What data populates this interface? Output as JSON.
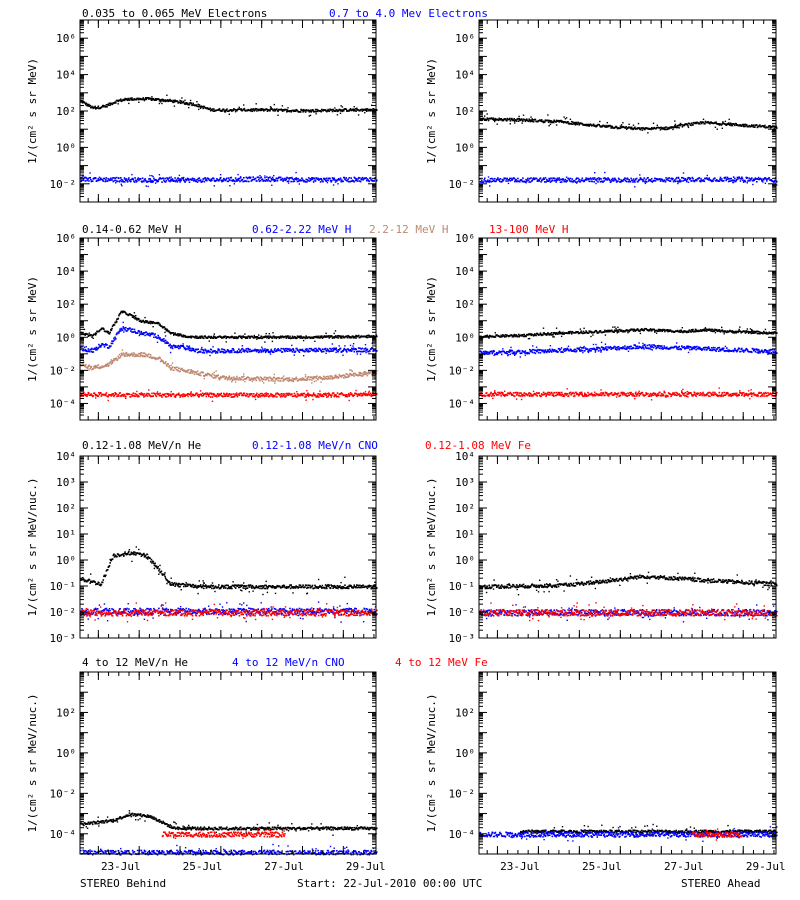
{
  "footer": {
    "left": "STEREO Behind",
    "center": "Start: 22-Jul-2010 00:00 UTC",
    "right": "STEREO Ahead"
  },
  "chart_data": [
    {
      "type": "scatter",
      "spacecraft": "STEREO Behind",
      "ylabel": "1/(cm² s sr MeV)",
      "yscale": "log",
      "ylim_exp": [
        -3,
        7
      ],
      "ytick_exp": [
        -2,
        0,
        2,
        4,
        6
      ],
      "xlim_days": [
        0,
        7.25
      ],
      "x_ticks": [
        "23-Jul",
        "25-Jul",
        "27-Jul",
        "29-Jul"
      ],
      "series": [
        {
          "name": "0.035 to 0.065 MeV Electrons",
          "color": "#000000",
          "points": [
            [
              0,
              2.6
            ],
            [
              0.3,
              2.2
            ],
            [
              0.6,
              2.3
            ],
            [
              0.9,
              2.6
            ],
            [
              1.2,
              2.7
            ],
            [
              1.7,
              2.7
            ],
            [
              2.2,
              2.6
            ],
            [
              2.8,
              2.4
            ],
            [
              3.2,
              2.1
            ],
            [
              4.5,
              2.1
            ],
            [
              5.5,
              2.05
            ],
            [
              6.5,
              2.1
            ],
            [
              7.25,
              2.1
            ]
          ]
        },
        {
          "name": "0.7 to 4.0 Mev Electrons",
          "color": "#0000ff",
          "points": [
            [
              0,
              -1.7
            ],
            [
              1.5,
              -1.75
            ],
            [
              3,
              -1.75
            ],
            [
              4.5,
              -1.7
            ],
            [
              6,
              -1.75
            ],
            [
              7.25,
              -1.7
            ]
          ]
        }
      ]
    },
    {
      "type": "scatter",
      "spacecraft": "STEREO Ahead",
      "ylabel": "1/(cm² s sr MeV)",
      "yscale": "log",
      "ylim_exp": [
        -3,
        7
      ],
      "ytick_exp": [
        -2,
        0,
        2,
        4,
        6
      ],
      "xlim_days": [
        0,
        7.25
      ],
      "x_ticks": [
        "23-Jul",
        "25-Jul",
        "27-Jul",
        "29-Jul"
      ],
      "series": [
        {
          "name": "0.035 to 0.065 MeV Electrons",
          "color": "#000000",
          "points": [
            [
              0,
              1.6
            ],
            [
              1,
              1.55
            ],
            [
              2,
              1.45
            ],
            [
              3,
              1.2
            ],
            [
              4,
              1.05
            ],
            [
              4.6,
              1.1
            ],
            [
              5.1,
              1.3
            ],
            [
              5.5,
              1.4
            ],
            [
              6.5,
              1.25
            ],
            [
              7.25,
              1.15
            ]
          ]
        },
        {
          "name": "0.7 to 4.0 Mev Electrons",
          "color": "#0000ff",
          "points": [
            [
              0,
              -1.75
            ],
            [
              2,
              -1.75
            ],
            [
              4,
              -1.75
            ],
            [
              6,
              -1.7
            ],
            [
              7.25,
              -1.75
            ]
          ]
        }
      ]
    },
    {
      "type": "scatter",
      "spacecraft": "STEREO Behind",
      "ylabel": "1/(cm² s sr MeV)",
      "yscale": "log",
      "ylim_exp": [
        -5,
        6
      ],
      "ytick_exp": [
        -4,
        -2,
        0,
        2,
        4,
        6
      ],
      "xlim_days": [
        0,
        7.25
      ],
      "x_ticks": [
        "23-Jul",
        "25-Jul",
        "27-Jul",
        "29-Jul"
      ],
      "series": [
        {
          "name": "0.14-0.62 MeV H",
          "color": "#000000",
          "points": [
            [
              0,
              0.3
            ],
            [
              0.3,
              0.1
            ],
            [
              0.5,
              0.6
            ],
            [
              0.7,
              0.3
            ],
            [
              1.0,
              1.6
            ],
            [
              1.2,
              1.4
            ],
            [
              1.5,
              1.0
            ],
            [
              1.9,
              0.9
            ],
            [
              2.2,
              0.3
            ],
            [
              2.6,
              0.1
            ],
            [
              2.9,
              0.05
            ],
            [
              4,
              0.05
            ],
            [
              5.5,
              0.05
            ],
            [
              7.25,
              0.1
            ]
          ]
        },
        {
          "name": "0.62-2.22 MeV H",
          "color": "#0000ff",
          "points": [
            [
              0,
              -0.6
            ],
            [
              0.3,
              -0.8
            ],
            [
              0.5,
              -0.4
            ],
            [
              0.7,
              -0.5
            ],
            [
              1.0,
              0.6
            ],
            [
              1.2,
              0.5
            ],
            [
              1.5,
              0.3
            ],
            [
              1.9,
              0.1
            ],
            [
              2.2,
              -0.5
            ],
            [
              2.6,
              -0.6
            ],
            [
              2.9,
              -0.8
            ],
            [
              4,
              -0.75
            ],
            [
              5.5,
              -0.75
            ],
            [
              7.25,
              -0.7
            ]
          ]
        },
        {
          "name": "2.2-12 MeV H",
          "color": "#c08870",
          "points": [
            [
              0,
              -1.6
            ],
            [
              0.3,
              -1.8
            ],
            [
              0.7,
              -1.6
            ],
            [
              1.0,
              -1.0
            ],
            [
              1.5,
              -1.0
            ],
            [
              1.9,
              -1.2
            ],
            [
              2.2,
              -1.8
            ],
            [
              2.8,
              -2.1
            ],
            [
              3.5,
              -2.4
            ],
            [
              5,
              -2.5
            ],
            [
              6,
              -2.4
            ],
            [
              7.25,
              -2.1
            ]
          ]
        },
        {
          "name": "13-100 MeV H",
          "color": "#ff0000",
          "points": [
            [
              0,
              -3.4
            ],
            [
              2,
              -3.45
            ],
            [
              4,
              -3.45
            ],
            [
              6,
              -3.45
            ],
            [
              7.25,
              -3.4
            ]
          ]
        }
      ]
    },
    {
      "type": "scatter",
      "spacecraft": "STEREO Ahead",
      "ylabel": "1/(cm² s sr MeV)",
      "yscale": "log",
      "ylim_exp": [
        -5,
        6
      ],
      "ytick_exp": [
        -4,
        -2,
        0,
        2,
        4,
        6
      ],
      "xlim_days": [
        0,
        7.25
      ],
      "x_ticks": [
        "23-Jul",
        "25-Jul",
        "27-Jul",
        "29-Jul"
      ],
      "series": [
        {
          "name": "0.14-0.62 MeV H",
          "color": "#000000",
          "points": [
            [
              0,
              0.1
            ],
            [
              1,
              0.15
            ],
            [
              2,
              0.3
            ],
            [
              3,
              0.4
            ],
            [
              4,
              0.5
            ],
            [
              4.5,
              0.45
            ],
            [
              5,
              0.4
            ],
            [
              5.5,
              0.5
            ],
            [
              6,
              0.4
            ],
            [
              7.25,
              0.3
            ]
          ]
        },
        {
          "name": "0.62-2.22 MeV H",
          "color": "#0000ff",
          "points": [
            [
              0,
              -0.9
            ],
            [
              1.5,
              -0.8
            ],
            [
              3,
              -0.65
            ],
            [
              4,
              -0.5
            ],
            [
              5,
              -0.6
            ],
            [
              6,
              -0.7
            ],
            [
              7.25,
              -0.8
            ]
          ]
        },
        {
          "name": "13-100 MeV H",
          "color": "#ff0000",
          "points": [
            [
              0,
              -3.4
            ],
            [
              2,
              -3.4
            ],
            [
              4,
              -3.4
            ],
            [
              6,
              -3.4
            ],
            [
              7.25,
              -3.4
            ]
          ]
        }
      ]
    },
    {
      "type": "scatter",
      "spacecraft": "STEREO Behind",
      "ylabel": "1/(cm² s sr MeV/nuc.)",
      "yscale": "log",
      "ylim_exp": [
        -3,
        4
      ],
      "ytick_exp": [
        -3,
        -2,
        -1,
        0,
        1,
        2,
        3,
        4
      ],
      "xlim_days": [
        0,
        7.25
      ],
      "x_ticks": [
        "23-Jul",
        "25-Jul",
        "27-Jul",
        "29-Jul"
      ],
      "series": [
        {
          "name": "0.12-1.08 MeV/n He",
          "color": "#000000",
          "points": [
            [
              0,
              -0.7
            ],
            [
              0.5,
              -0.9
            ],
            [
              0.8,
              0.2
            ],
            [
              1.2,
              0.3
            ],
            [
              1.6,
              0.2
            ],
            [
              1.9,
              -0.3
            ],
            [
              2.2,
              -0.9
            ],
            [
              3,
              -1.0
            ],
            [
              5,
              -1.0
            ],
            [
              7.25,
              -1.0
            ]
          ]
        },
        {
          "name": "0.12-1.08 MeV/n CNO",
          "color": "#0000ff",
          "points": [
            [
              0,
              -1.95
            ],
            [
              3,
              -1.95
            ],
            [
              7.25,
              -1.95
            ]
          ]
        },
        {
          "name": "0.12-1.08 MeV Fe",
          "color": "#ff0000",
          "points": [
            [
              0,
              -2.0
            ],
            [
              3,
              -2.0
            ],
            [
              7.25,
              -2.0
            ]
          ]
        }
      ]
    },
    {
      "type": "scatter",
      "spacecraft": "STEREO Ahead",
      "ylabel": "1/(cm² s sr MeV/nuc.)",
      "yscale": "log",
      "ylim_exp": [
        -3,
        4
      ],
      "ytick_exp": [
        -3,
        -2,
        -1,
        0,
        1,
        2,
        3,
        4
      ],
      "xlim_days": [
        0,
        7.25
      ],
      "x_ticks": [
        "23-Jul",
        "25-Jul",
        "27-Jul",
        "29-Jul"
      ],
      "series": [
        {
          "name": "0.12-1.08 MeV/n He",
          "color": "#000000",
          "points": [
            [
              0,
              -1.0
            ],
            [
              2,
              -0.95
            ],
            [
              3,
              -0.8
            ],
            [
              4,
              -0.6
            ],
            [
              4.5,
              -0.65
            ],
            [
              5.5,
              -0.75
            ],
            [
              7.25,
              -0.9
            ]
          ]
        },
        {
          "name": "0.12-1.08 MeV/n CNO",
          "color": "#0000ff",
          "points": [
            [
              0,
              -2.0
            ],
            [
              4,
              -2.0
            ],
            [
              7.25,
              -2.0
            ]
          ]
        },
        {
          "name": "0.12-1.08 MeV Fe",
          "color": "#ff0000",
          "points": [
            [
              0,
              -2.0
            ],
            [
              4,
              -2.0
            ],
            [
              7.25,
              -2.0
            ]
          ]
        }
      ]
    },
    {
      "type": "scatter",
      "spacecraft": "STEREO Behind",
      "ylabel": "1/(cm² s sr MeV/nuc.)",
      "yscale": "log",
      "ylim_exp": [
        -5,
        4
      ],
      "ytick_exp": [
        -4,
        -2,
        0,
        2
      ],
      "xlim_days": [
        0,
        7.25
      ],
      "x_ticks": [
        "23-Jul",
        "25-Jul",
        "27-Jul",
        "29-Jul"
      ],
      "series": [
        {
          "name": "4 to 12 MeV/n He",
          "color": "#000000",
          "points": [
            [
              0,
              -3.5
            ],
            [
              0.8,
              -3.3
            ],
            [
              1.2,
              -3.0
            ],
            [
              1.7,
              -3.1
            ],
            [
              2.3,
              -3.7
            ],
            [
              4,
              -3.7
            ],
            [
              7.25,
              -3.7
            ]
          ]
        },
        {
          "name": "4 to 12 MeV/n CNO",
          "color": "#0000ff",
          "points": [
            [
              0,
              -4.9
            ],
            [
              3,
              -4.9
            ],
            [
              6,
              -4.9
            ],
            [
              7.25,
              -4.9
            ]
          ]
        },
        {
          "name": "4 to 12 MeV Fe",
          "color": "#ff0000",
          "points": [
            [
              2,
              -4.0
            ],
            [
              3.5,
              -4.0
            ],
            [
              5,
              -4.0
            ]
          ]
        }
      ]
    },
    {
      "type": "scatter",
      "spacecraft": "STEREO Ahead",
      "ylabel": "1/(cm² s sr MeV/nuc.)",
      "yscale": "log",
      "ylim_exp": [
        -5,
        4
      ],
      "ytick_exp": [
        -4,
        -2,
        0,
        2
      ],
      "xlim_days": [
        0,
        7.25
      ],
      "x_ticks": [
        "23-Jul",
        "25-Jul",
        "27-Jul",
        "29-Jul"
      ],
      "series": [
        {
          "name": "4 to 12 MeV/n He",
          "color": "#000000",
          "points": [
            [
              1,
              -3.85
            ],
            [
              3,
              -3.85
            ],
            [
              5,
              -3.85
            ],
            [
              7.25,
              -3.85
            ]
          ]
        },
        {
          "name": "4 to 12 MeV/n CNO",
          "color": "#0000ff",
          "points": [
            [
              0,
              -4.0
            ],
            [
              2,
              -4.0
            ],
            [
              4,
              -4.0
            ],
            [
              6,
              -4.0
            ],
            [
              7.25,
              -4.0
            ]
          ]
        },
        {
          "name": "4 to 12 MeV Fe",
          "color": "#ff0000",
          "points": [
            [
              5.2,
              -4.0
            ],
            [
              6.4,
              -4.0
            ]
          ]
        }
      ]
    }
  ]
}
